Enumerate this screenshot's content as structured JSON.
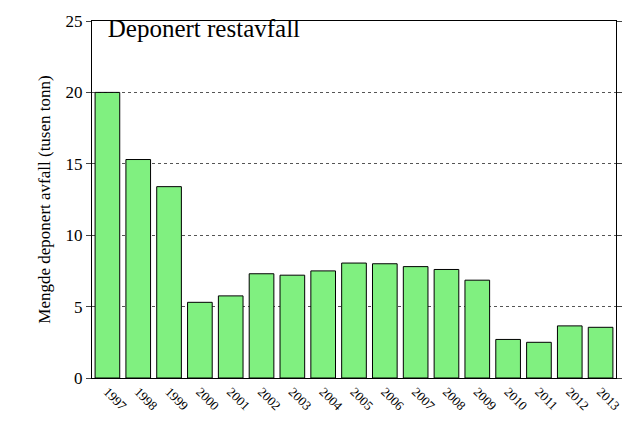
{
  "chart_data": {
    "type": "bar",
    "title": "Deponert restavfall",
    "y_label": "Mengde deponert avfall (tusen tonn)",
    "categories": [
      "1997",
      "1998",
      "1999",
      "2000",
      "2001",
      "2002",
      "2003",
      "2004",
      "2005",
      "2006",
      "2007",
      "2008",
      "2009",
      "2010",
      "2011",
      "2012",
      "2013"
    ],
    "values": [
      20.0,
      15.3,
      13.4,
      5.3,
      5.75,
      7.3,
      7.2,
      7.5,
      8.05,
      8.0,
      7.8,
      7.6,
      6.85,
      2.7,
      2.5,
      3.65,
      3.55
    ],
    "color": "#80f080",
    "ylim": [
      0,
      25
    ],
    "yticks": [
      0,
      5,
      10,
      15,
      20,
      25
    ],
    "grid": true
  }
}
